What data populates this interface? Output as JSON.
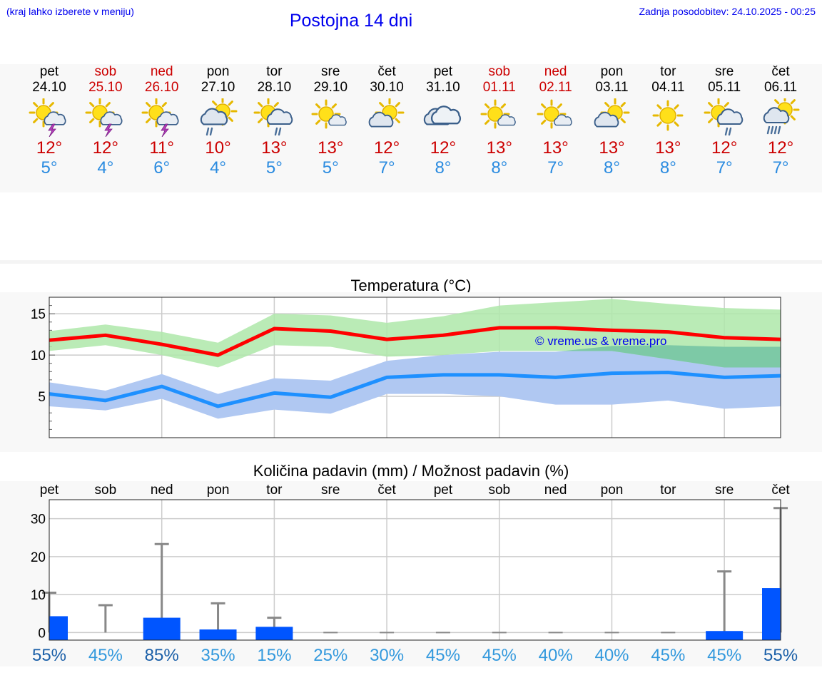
{
  "header": {
    "hint": "(kraj lahko izberete v meniju)",
    "title": "Postojna 14 dni",
    "updated": "Zadnja posodobitev: 24.10.2025 - 00:25"
  },
  "days": [
    {
      "name": "pet",
      "date": "24.10",
      "weekend": false,
      "icon": "sun-thunderstorm-icon",
      "max": "12°",
      "min": "5°"
    },
    {
      "name": "sob",
      "date": "25.10",
      "weekend": true,
      "icon": "sun-thunderstorm-icon",
      "max": "12°",
      "min": "4°"
    },
    {
      "name": "ned",
      "date": "26.10",
      "weekend": true,
      "icon": "sun-thunderstorm-icon",
      "max": "11°",
      "min": "6°"
    },
    {
      "name": "pon",
      "date": "27.10",
      "weekend": false,
      "icon": "sun-rain-cloud-icon",
      "max": "10°",
      "min": "4°"
    },
    {
      "name": "tor",
      "date": "28.10",
      "weekend": false,
      "icon": "sun-light-rain-icon",
      "max": "13°",
      "min": "5°"
    },
    {
      "name": "sre",
      "date": "29.10",
      "weekend": false,
      "icon": "sun-small-cloud-icon",
      "max": "13°",
      "min": "5°"
    },
    {
      "name": "čet",
      "date": "30.10",
      "weekend": false,
      "icon": "sun-cloud-icon",
      "max": "12°",
      "min": "7°"
    },
    {
      "name": "pet",
      "date": "31.10",
      "weekend": false,
      "icon": "overcast-icon",
      "max": "12°",
      "min": "8°"
    },
    {
      "name": "sob",
      "date": "01.11",
      "weekend": true,
      "icon": "sun-small-cloud-icon",
      "max": "13°",
      "min": "8°"
    },
    {
      "name": "ned",
      "date": "02.11",
      "weekend": true,
      "icon": "sun-small-cloud-icon",
      "max": "13°",
      "min": "7°"
    },
    {
      "name": "pon",
      "date": "03.11",
      "weekend": false,
      "icon": "sun-cloud-icon",
      "max": "13°",
      "min": "8°"
    },
    {
      "name": "tor",
      "date": "04.11",
      "weekend": false,
      "icon": "sun-icon",
      "max": "13°",
      "min": "8°"
    },
    {
      "name": "sre",
      "date": "05.11",
      "weekend": false,
      "icon": "sun-light-rain-icon",
      "max": "12°",
      "min": "7°"
    },
    {
      "name": "čet",
      "date": "06.11",
      "weekend": false,
      "icon": "sun-heavy-rain-icon",
      "max": "12°",
      "min": "7°"
    }
  ],
  "colors": {
    "max_line": "#ff0000",
    "max_band": "#aee7a9",
    "min_line": "#1e90ff",
    "min_band": "#b0c8f2",
    "overlap_band": "#7dc9a6",
    "bar": "#0055ff",
    "whisker": "#888888",
    "prob_dark": "#1a5fa8",
    "prob_light": "#3399dd"
  },
  "chart_data": [
    {
      "type": "line",
      "title": "Temperatura (°C)",
      "watermark": "© vreme.us & vreme.pro",
      "ylim": [
        0,
        17
      ],
      "yticks": [
        5,
        10,
        15
      ],
      "grid": true,
      "categories": [
        "24.10",
        "25.10",
        "26.10",
        "27.10",
        "28.10",
        "29.10",
        "30.10",
        "31.10",
        "01.11",
        "02.11",
        "03.11",
        "04.11",
        "05.11",
        "06.11"
      ],
      "series": [
        {
          "role": "max",
          "values": [
            11.8,
            12.4,
            11.3,
            10.0,
            13.2,
            12.9,
            11.9,
            12.4,
            13.3,
            13.3,
            13.0,
            12.8,
            12.1,
            11.9
          ],
          "band_low": [
            10.5,
            11.2,
            10.0,
            8.5,
            11.2,
            11.0,
            9.8,
            10.0,
            10.5,
            10.5,
            10.5,
            9.5,
            8.5,
            8.5
          ],
          "band_high": [
            12.9,
            13.7,
            12.8,
            11.5,
            15.0,
            14.8,
            13.9,
            14.7,
            16.0,
            16.4,
            16.8,
            16.2,
            15.7,
            15.5
          ]
        },
        {
          "role": "min",
          "values": [
            5.3,
            4.5,
            6.2,
            3.8,
            5.4,
            4.9,
            7.3,
            7.6,
            7.6,
            7.3,
            7.8,
            7.9,
            7.3,
            7.5
          ],
          "band_low": [
            3.8,
            3.3,
            4.7,
            2.3,
            3.4,
            2.9,
            5.3,
            5.3,
            5.0,
            4.0,
            4.0,
            4.5,
            3.5,
            3.8
          ],
          "band_high": [
            6.7,
            5.7,
            7.7,
            5.3,
            7.2,
            6.9,
            9.3,
            10.0,
            10.4,
            10.4,
            11.1,
            11.2,
            11.0,
            11.0
          ]
        }
      ]
    },
    {
      "type": "bar",
      "title": "Količina padavin (mm) / Možnost padavin (%)",
      "ylim": [
        -2,
        35
      ],
      "yticks": [
        0,
        10,
        20,
        30
      ],
      "grid": true,
      "categories": [
        "pet",
        "sob",
        "ned",
        "pon",
        "tor",
        "sre",
        "čet",
        "pet",
        "sob",
        "ned",
        "pon",
        "tor",
        "sre",
        "čet"
      ],
      "values": [
        4.3,
        0,
        3.9,
        0.8,
        1.5,
        0,
        0,
        0,
        0,
        0,
        0,
        0,
        0.4,
        11.7
      ],
      "whisker_max": [
        10.5,
        7.2,
        23.3,
        7.7,
        3.9,
        0,
        0,
        0,
        0,
        0,
        0,
        0,
        16.1,
        32.8
      ],
      "probability": [
        "55%",
        "45%",
        "85%",
        "35%",
        "15%",
        "25%",
        "30%",
        "45%",
        "45%",
        "40%",
        "40%",
        "45%",
        "45%",
        "55%"
      ],
      "probability_strong": [
        true,
        false,
        true,
        false,
        false,
        false,
        false,
        false,
        false,
        false,
        false,
        false,
        false,
        true
      ]
    }
  ]
}
